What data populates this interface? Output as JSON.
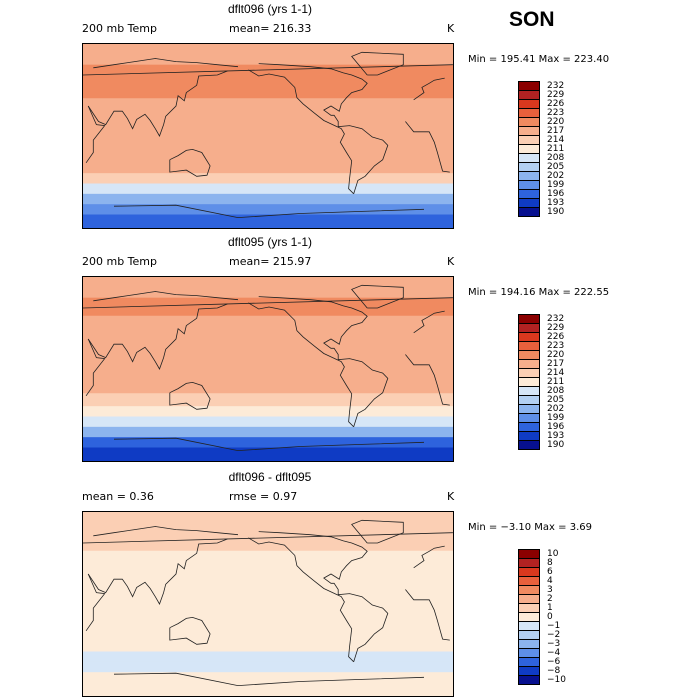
{
  "season": "SON",
  "chart_data": [
    {
      "type": "heatmap",
      "title": "dflt096 (yrs 1-1)",
      "variable": "200 mb Temp",
      "mean_label": "mean= 216.33",
      "units": "K",
      "min_max_label": "Min = 195.41 Max = 223.40",
      "min": 195.41,
      "max": 223.4,
      "mean": 216.33,
      "colorbar_levels": [
        "232",
        "229",
        "226",
        "223",
        "220",
        "217",
        "214",
        "211",
        "208",
        "205",
        "202",
        "199",
        "196",
        "193",
        "190"
      ],
      "colorbar_colors": [
        "#8b0000",
        "#b22222",
        "#d9381e",
        "#e8603c",
        "#f08a60",
        "#f6ae8c",
        "#fbcfb4",
        "#fdebd8",
        "#d6e6f7",
        "#b3d0f2",
        "#8cb4ee",
        "#5e8fe8",
        "#2e63dd",
        "#0f3bc4",
        "#07108f"
      ],
      "latitudes": [
        80,
        60,
        45,
        30,
        15,
        0,
        -15,
        -30,
        -40,
        -50,
        -60,
        -70,
        -80
      ],
      "zonal_values": [
        219,
        221,
        220,
        219,
        218,
        217,
        218,
        217,
        214,
        210,
        204,
        199,
        196
      ]
    },
    {
      "type": "heatmap",
      "title": "dflt095 (yrs 1-1)",
      "variable": "200 mb Temp",
      "mean_label": "mean= 215.97",
      "units": "K",
      "min_max_label": "Min = 194.16 Max = 222.55",
      "min": 194.16,
      "max": 222.55,
      "mean": 215.97,
      "colorbar_levels": [
        "232",
        "229",
        "226",
        "223",
        "220",
        "217",
        "214",
        "211",
        "208",
        "205",
        "202",
        "199",
        "196",
        "193",
        "190"
      ],
      "colorbar_colors": [
        "#8b0000",
        "#b22222",
        "#d9381e",
        "#e8603c",
        "#f08a60",
        "#f6ae8c",
        "#fbcfb4",
        "#fdebd8",
        "#d6e6f7",
        "#b3d0f2",
        "#8cb4ee",
        "#5e8fe8",
        "#2e63dd",
        "#0f3bc4",
        "#07108f"
      ],
      "latitudes": [
        80,
        60,
        45,
        30,
        15,
        0,
        -15,
        -30,
        -40,
        -50,
        -60,
        -70,
        -80
      ],
      "zonal_values": [
        218,
        220,
        219,
        218,
        218,
        217,
        217,
        216,
        213,
        208,
        202,
        197,
        195
      ]
    },
    {
      "type": "heatmap",
      "title": "dflt096 - dflt095",
      "mean_label": "mean =   0.36",
      "rmse_label": "rmse =   0.97",
      "units": "K",
      "min_max_label": "Min = −3.10 Max =   3.69",
      "min": -3.1,
      "max": 3.69,
      "mean": 0.36,
      "rmse": 0.97,
      "colorbar_levels": [
        "10",
        "8",
        "6",
        "4",
        "3",
        "2",
        "1",
        "0",
        "−1",
        "−2",
        "−3",
        "−4",
        "−6",
        "−8",
        "−10"
      ],
      "colorbar_colors": [
        "#8b0000",
        "#b22222",
        "#d9381e",
        "#e8603c",
        "#f08a60",
        "#f6ae8c",
        "#fbcfb4",
        "#fdebd8",
        "#d6e6f7",
        "#b3d0f2",
        "#8cb4ee",
        "#5e8fe8",
        "#2e63dd",
        "#0f3bc4",
        "#07108f"
      ],
      "latitudes": [
        80,
        60,
        45,
        30,
        15,
        0,
        -15,
        -30,
        -40,
        -50,
        -60,
        -70,
        -80
      ],
      "zonal_values": [
        1,
        1,
        0.5,
        0.3,
        0.5,
        0.2,
        0.6,
        0.3,
        0.2,
        -1,
        -0.5,
        0.5,
        0.4
      ]
    }
  ]
}
